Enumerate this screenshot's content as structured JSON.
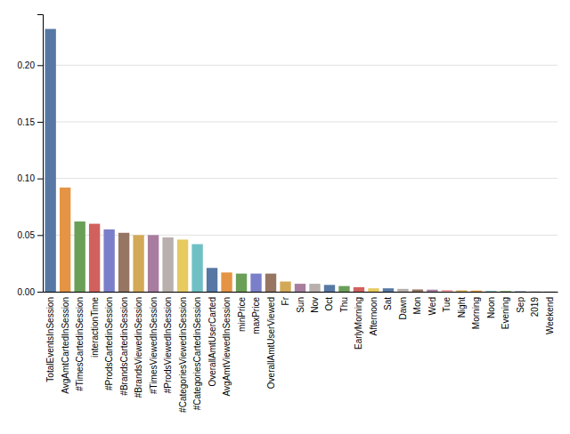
{
  "chart_data": {
    "type": "bar",
    "categories": [
      "TotalEventsInSession",
      "AvgAmtCartedInSession",
      "#TimesCartedinSession",
      "interactionTime",
      "#ProdsCartedinSession",
      "#BrandsCartedinSession",
      "#BrandsViewedinSession",
      "#TimesViewedInSession",
      "#ProdsViewedInSession",
      "#CategoriesViewedinSession",
      "#CategoriesCartedinSession",
      "OverallAmtUserCarted",
      "AvgAmtViewedInSession",
      "minPrice",
      "maxPrice",
      "OverallAmtUserViewed",
      "Fr",
      "Sun",
      "Nov",
      "Oct",
      "Thu",
      "EarlyMorning",
      "Afternoon",
      "Sat",
      "Dawn",
      "Mon",
      "Wed",
      "Tue",
      "Night",
      "Morning",
      "Noon",
      "Evening",
      "Sep",
      "2019",
      "Weekend"
    ],
    "values": [
      0.232,
      0.092,
      0.062,
      0.06,
      0.055,
      0.052,
      0.05,
      0.05,
      0.048,
      0.046,
      0.042,
      0.021,
      0.017,
      0.016,
      0.016,
      0.016,
      0.009,
      0.007,
      0.007,
      0.006,
      0.005,
      0.004,
      0.003,
      0.003,
      0.0025,
      0.002,
      0.0018,
      0.0015,
      0.0012,
      0.001,
      0.0008,
      0.0006,
      0.0004,
      0.0003,
      0.0001
    ],
    "colors": [
      "#5778a4",
      "#e49444",
      "#6a9f58",
      "#d1615d",
      "#7b7ec8",
      "#967662",
      "#d3a957",
      "#a87c9f",
      "#b8b0ac",
      "#e7ca60",
      "#6fc0c4",
      "#5778a4",
      "#e49444",
      "#6a9f58",
      "#7b7ec8",
      "#967662",
      "#d3a957",
      "#a87c9f",
      "#b8b0ac",
      "#5778a4",
      "#6a9f58",
      "#d1615d",
      "#e7ca60",
      "#5778a4",
      "#b8b0ac",
      "#967662",
      "#a87c9f",
      "#f1a2a9",
      "#d3a957",
      "#e49444",
      "#85b6b2",
      "#6a9f58",
      "#5778a4",
      "#b8b0ac",
      "#967662"
    ],
    "ylim": [
      0,
      0.245
    ],
    "yticks": [
      {
        "value": 0,
        "label": "0.00"
      },
      0.05,
      {
        "value": 0.1,
        "label": "0.10"
      },
      0.15,
      {
        "value": 0.2,
        "label": "0.20"
      }
    ],
    "grid": true
  }
}
